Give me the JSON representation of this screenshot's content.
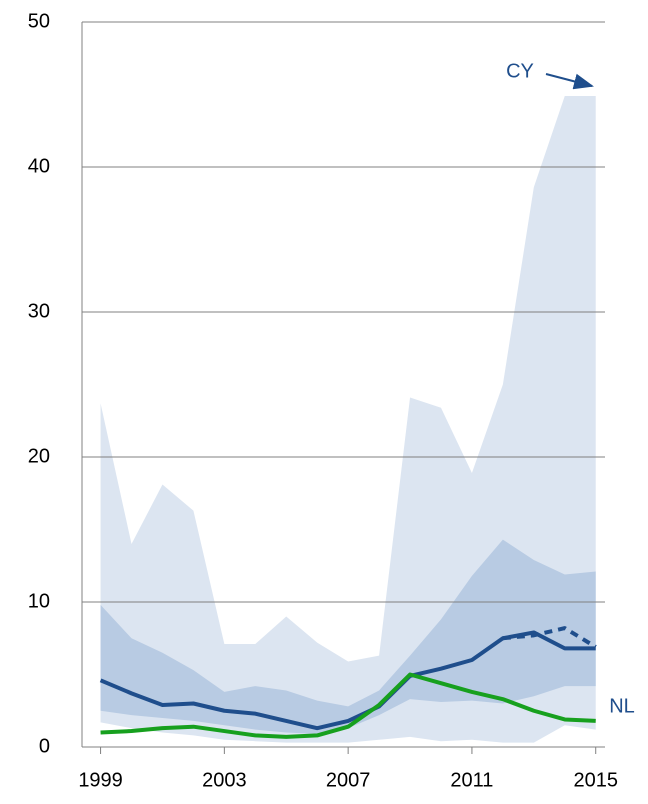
{
  "chart_data": {
    "type": "line",
    "x": [
      1999,
      2000,
      2001,
      2002,
      2003,
      2004,
      2005,
      2006,
      2007,
      2008,
      2009,
      2010,
      2011,
      2012,
      2013,
      2014,
      2015
    ],
    "xlim": [
      1998.4,
      2015.3
    ],
    "xticks": [
      1999,
      2003,
      2007,
      2011,
      2015
    ],
    "ylim": [
      0,
      50
    ],
    "yticks": [
      0,
      10,
      20,
      30,
      40,
      50
    ],
    "grid": true,
    "bands": [
      {
        "color": "#dce5f1",
        "upper": [
          23.7,
          14.0,
          18.1,
          16.3,
          7.1,
          7.1,
          9.0,
          7.2,
          5.9,
          6.3,
          24.1,
          23.4,
          18.9,
          25.0,
          38.6,
          44.9,
          44.9
        ],
        "lower": [
          1.7,
          1.3,
          1.0,
          0.8,
          0.5,
          0.4,
          0.3,
          0.3,
          0.3,
          0.5,
          0.7,
          0.4,
          0.5,
          0.3,
          0.3,
          1.5,
          1.2
        ]
      },
      {
        "color": "#b8cbe3",
        "upper": [
          9.8,
          7.5,
          6.5,
          5.3,
          3.8,
          4.2,
          3.9,
          3.2,
          2.8,
          3.9,
          6.3,
          8.8,
          11.8,
          14.3,
          12.9,
          11.9,
          12.1
        ],
        "lower": [
          2.5,
          2.2,
          2.0,
          1.8,
          1.5,
          1.2,
          1.0,
          0.9,
          1.3,
          2.2,
          3.3,
          3.1,
          3.2,
          3.0,
          3.5,
          4.2,
          4.2
        ]
      }
    ],
    "series": [
      {
        "color": "#1f4e8c",
        "dashed": true,
        "values": [
          null,
          null,
          null,
          null,
          null,
          null,
          null,
          null,
          null,
          null,
          null,
          null,
          null,
          7.5,
          7.7,
          8.2,
          6.9
        ]
      },
      {
        "color": "#1f4e8c",
        "values": [
          4.6,
          3.7,
          2.9,
          3.0,
          2.5,
          2.3,
          1.8,
          1.3,
          1.8,
          2.8,
          4.9,
          5.4,
          6.0,
          7.5,
          7.9,
          6.8,
          6.8
        ]
      },
      {
        "color": "#17a01e",
        "values": [
          1.0,
          1.1,
          1.3,
          1.4,
          1.1,
          0.8,
          0.7,
          0.8,
          1.4,
          2.9,
          5.0,
          4.4,
          3.8,
          3.3,
          2.5,
          1.9,
          1.8
        ]
      }
    ],
    "annotations": [
      "CY",
      "NL"
    ]
  }
}
